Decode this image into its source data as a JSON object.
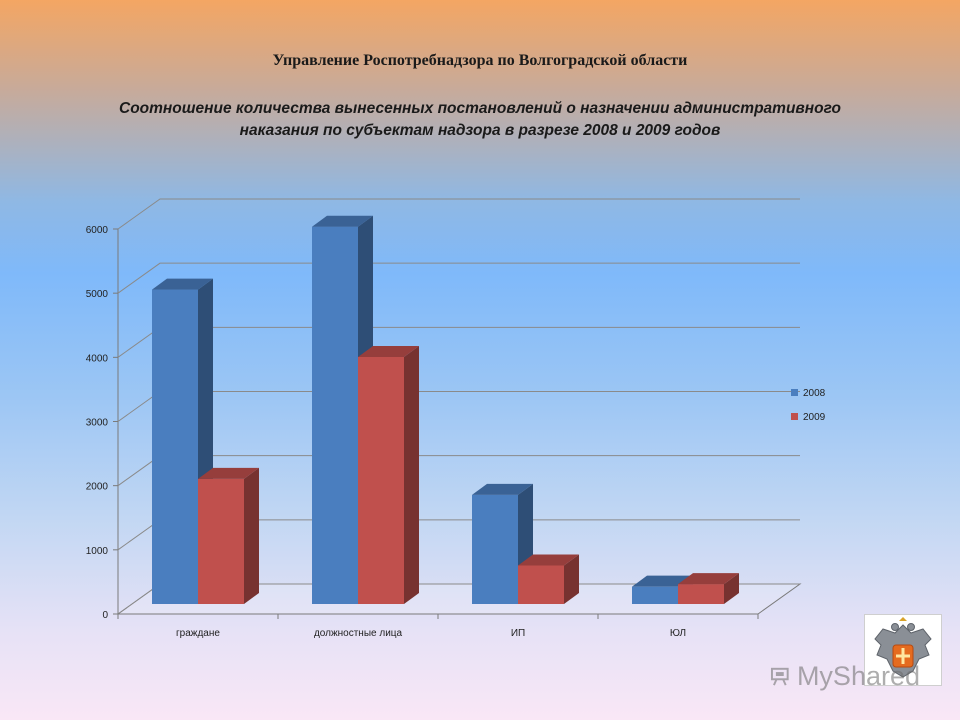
{
  "header": {
    "organization": "Управление Роспотребнадзора по Волгоградской области",
    "subtitle": "Соотношение количества вынесенных постановлений о назначении административного наказания по субъектам надзора в разрезе 2008 и 2009 годов"
  },
  "chart_data": {
    "type": "bar",
    "style": "3d-clustered-column",
    "title": "",
    "xlabel": "",
    "ylabel": "",
    "categories": [
      "граждане",
      "должностные лица",
      "ИП",
      "ЮЛ"
    ],
    "series": [
      {
        "name": "2008",
        "values": [
          4900,
          5880,
          1700,
          270
        ],
        "color": "#4a7ebf"
      },
      {
        "name": "2009",
        "values": [
          1950,
          3850,
          600,
          310
        ],
        "color": "#c0504d"
      }
    ],
    "ylim": [
      0,
      6000
    ],
    "yticks": [
      0,
      1000,
      2000,
      3000,
      4000,
      5000,
      6000
    ],
    "grid": true,
    "legend_position": "right"
  },
  "watermark": {
    "text": "MyShared"
  },
  "logo": {
    "icon": "double-headed-eagle-emblem"
  }
}
